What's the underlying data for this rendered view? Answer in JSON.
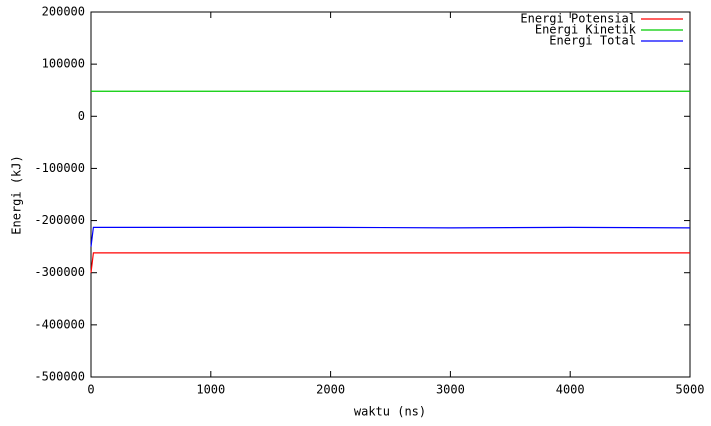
{
  "chart_data": {
    "type": "line",
    "xlabel": "waktu (ns)",
    "ylabel": "Energi (kJ)",
    "x": [
      0,
      20,
      1000,
      2000,
      3000,
      4000,
      5000
    ],
    "series": [
      {
        "name": "Energi Potensial",
        "color": "#ff0000",
        "values": [
          -300000,
          -262000,
          -262000,
          -262000,
          -262000,
          -262000,
          -262000
        ]
      },
      {
        "name": "Energi Kinetik",
        "color": "#00cc00",
        "values": [
          48000,
          48000,
          48000,
          48000,
          48000,
          48000,
          48000
        ]
      },
      {
        "name": "Energi Total",
        "color": "#0000ff",
        "values": [
          -250000,
          -213000,
          -213000,
          -213000,
          -214000,
          -213000,
          -214000
        ]
      }
    ],
    "xlim": [
      0,
      5000
    ],
    "xticks": [
      0,
      1000,
      2000,
      3000,
      4000,
      5000
    ],
    "ylim": [
      -500000,
      200000
    ],
    "yticks": [
      -500000,
      -400000,
      -300000,
      -200000,
      -100000,
      0,
      100000,
      200000
    ],
    "grid": false,
    "legend": "top-right"
  }
}
